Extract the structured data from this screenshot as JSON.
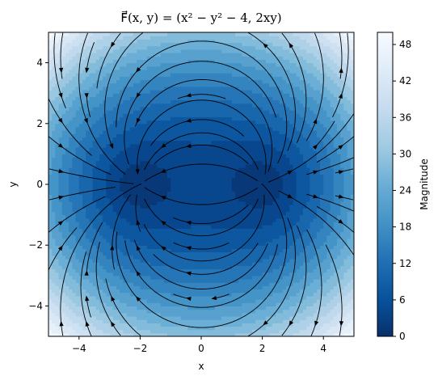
{
  "chart_data": {
    "type": "heatmap",
    "title": "F⃗(x, y) = (x² − y² − 4, 2xy)",
    "xlabel": "x",
    "ylabel": "y",
    "xlim": [
      -5,
      5
    ],
    "ylim": [
      -5,
      5
    ],
    "x_ticks": [
      -4,
      -2,
      0,
      2,
      4
    ],
    "y_ticks": [
      -4,
      -2,
      0,
      2,
      4
    ],
    "field": {
      "fx": "x^2 - y^2 - 4",
      "fy": "2*x*y"
    },
    "overlay": "streamlines",
    "colormap": "Blues_r",
    "colorbar": {
      "label": "Magnitude",
      "range": [
        0,
        50
      ],
      "ticks": [
        0,
        6,
        12,
        18,
        24,
        30,
        36,
        42,
        48
      ]
    },
    "grid": false
  }
}
